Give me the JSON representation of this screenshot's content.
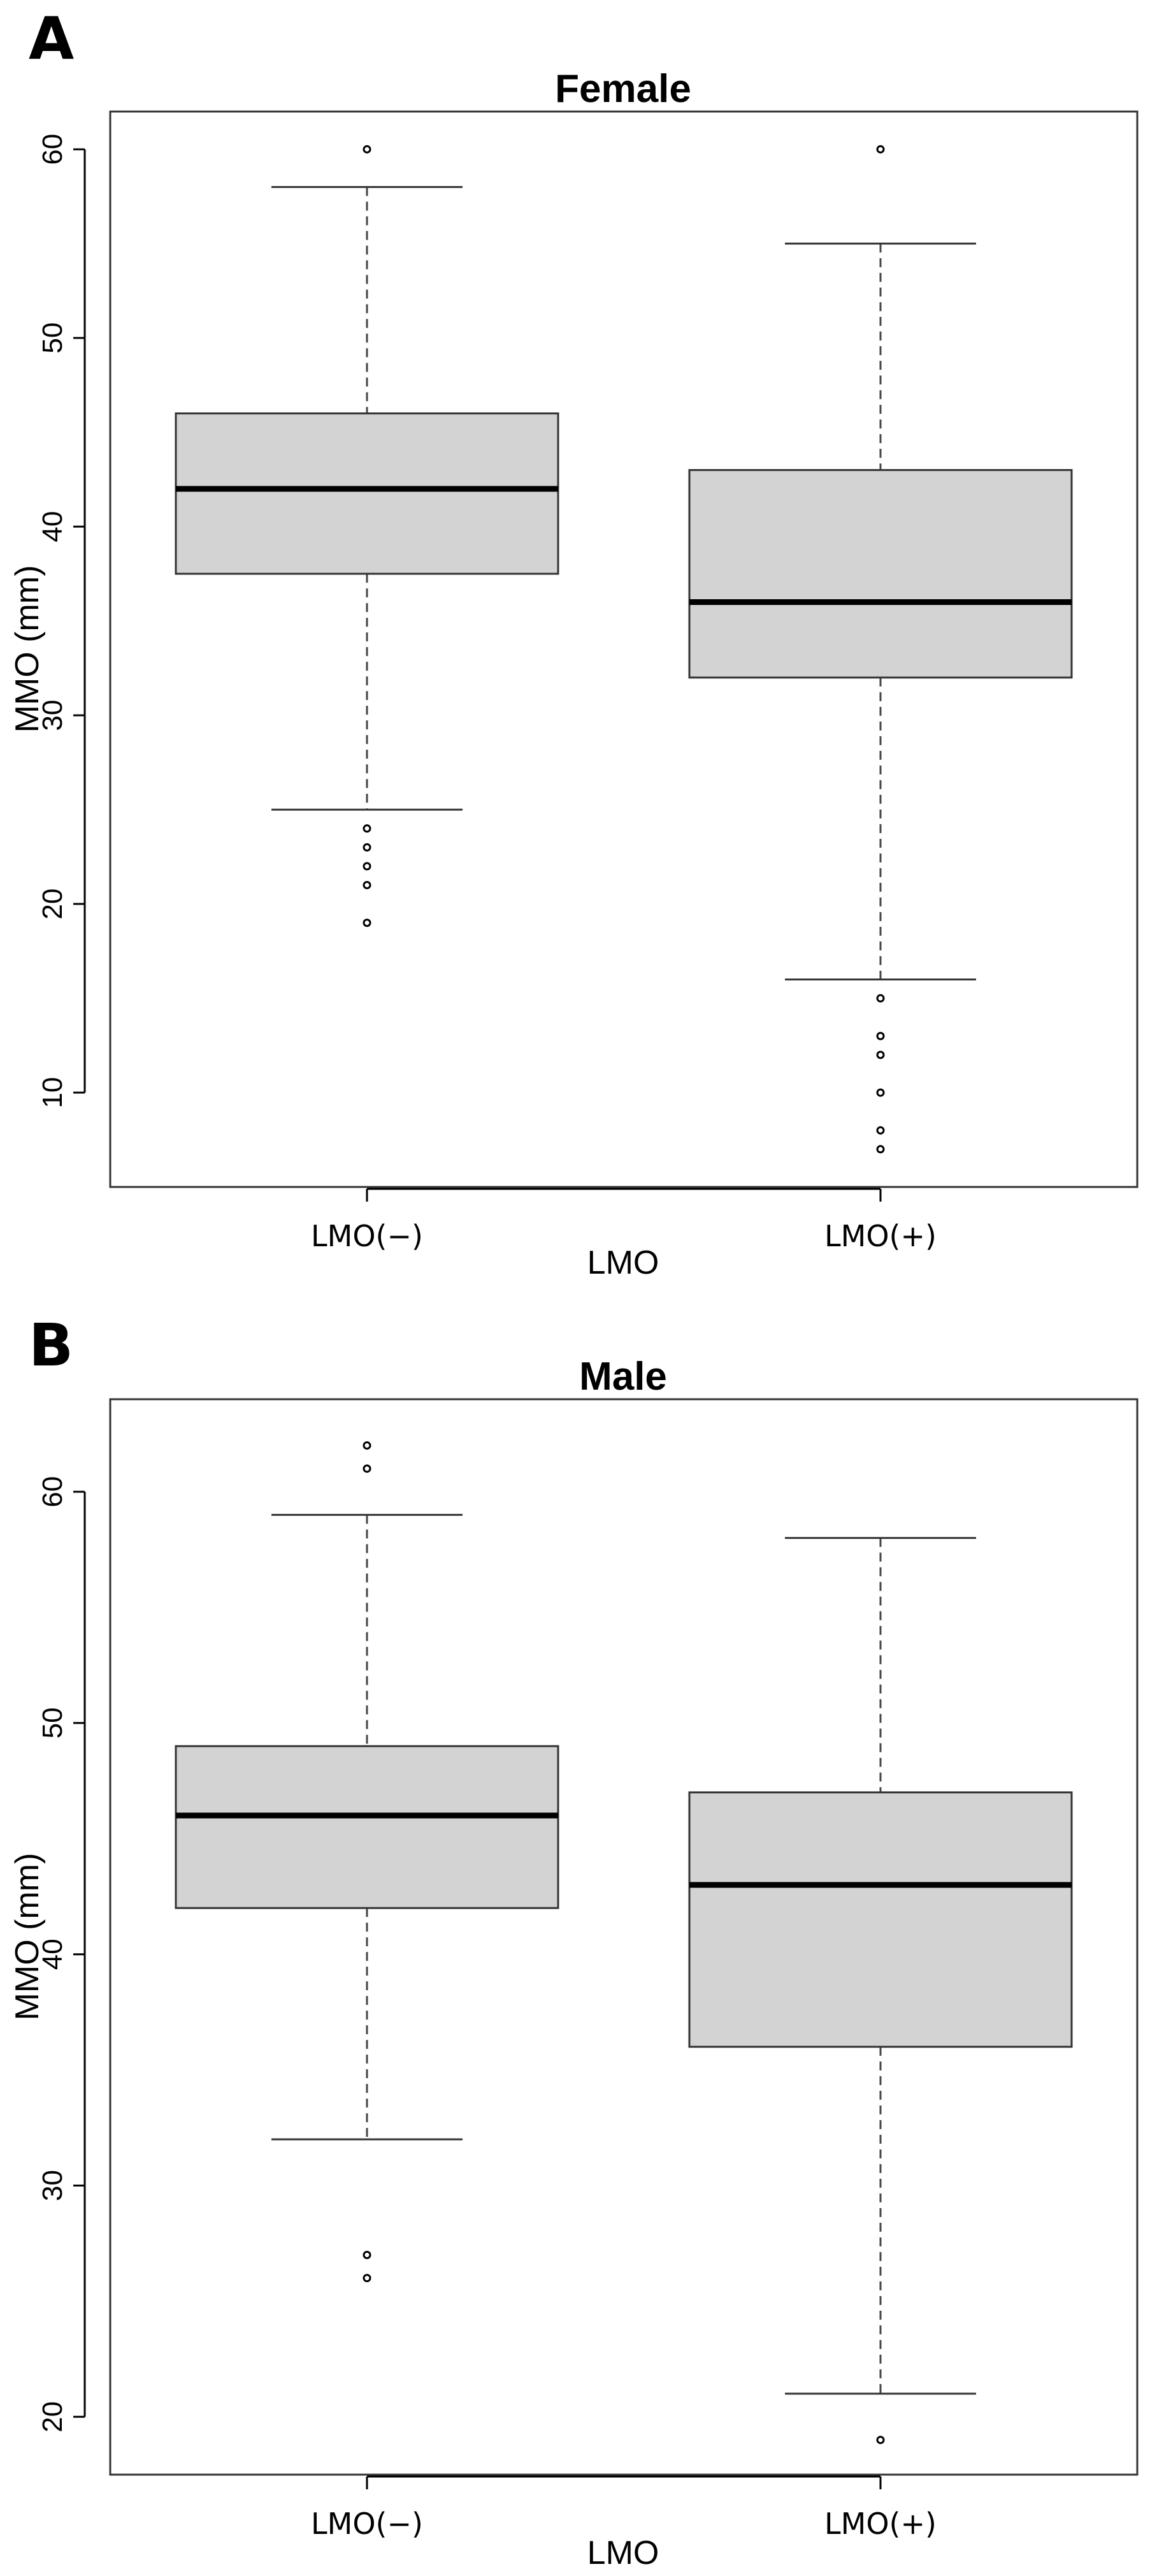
{
  "panels": [
    {
      "letter": "A"
    },
    {
      "letter": "B"
    }
  ],
  "chart_data": [
    {
      "type": "boxplot",
      "title": "Female",
      "xlabel": "LMO",
      "ylabel": "MMO (mm)",
      "categories": [
        "LMO(−)",
        "LMO(+)"
      ],
      "ylim": [
        5,
        62
      ],
      "yticks": [
        10,
        20,
        30,
        40,
        50,
        60
      ],
      "box_color": "#d3d3d3",
      "boxes": [
        {
          "whisker_low": 25,
          "q1": 37.5,
          "median": 42,
          "q3": 46,
          "whisker_high": 58,
          "outliers": [
            60,
            24,
            23,
            22,
            21,
            19
          ]
        },
        {
          "whisker_low": 16,
          "q1": 32,
          "median": 36,
          "q3": 43,
          "whisker_high": 55,
          "outliers": [
            60,
            15,
            13,
            12,
            10,
            8,
            7
          ]
        }
      ]
    },
    {
      "type": "boxplot",
      "title": "Male",
      "xlabel": "LMO",
      "ylabel": "MMO (mm)",
      "categories": [
        "LMO(−)",
        "LMO(+)"
      ],
      "ylim": [
        17.5,
        64
      ],
      "yticks": [
        20,
        30,
        40,
        50,
        60
      ],
      "box_color": "#d3d3d3",
      "boxes": [
        {
          "whisker_low": 32,
          "q1": 42,
          "median": 46,
          "q3": 49,
          "whisker_high": 59,
          "outliers": [
            62,
            61,
            27,
            26
          ]
        },
        {
          "whisker_low": 21,
          "q1": 36,
          "median": 43,
          "q3": 47,
          "whisker_high": 58,
          "outliers": [
            19
          ]
        }
      ]
    }
  ]
}
